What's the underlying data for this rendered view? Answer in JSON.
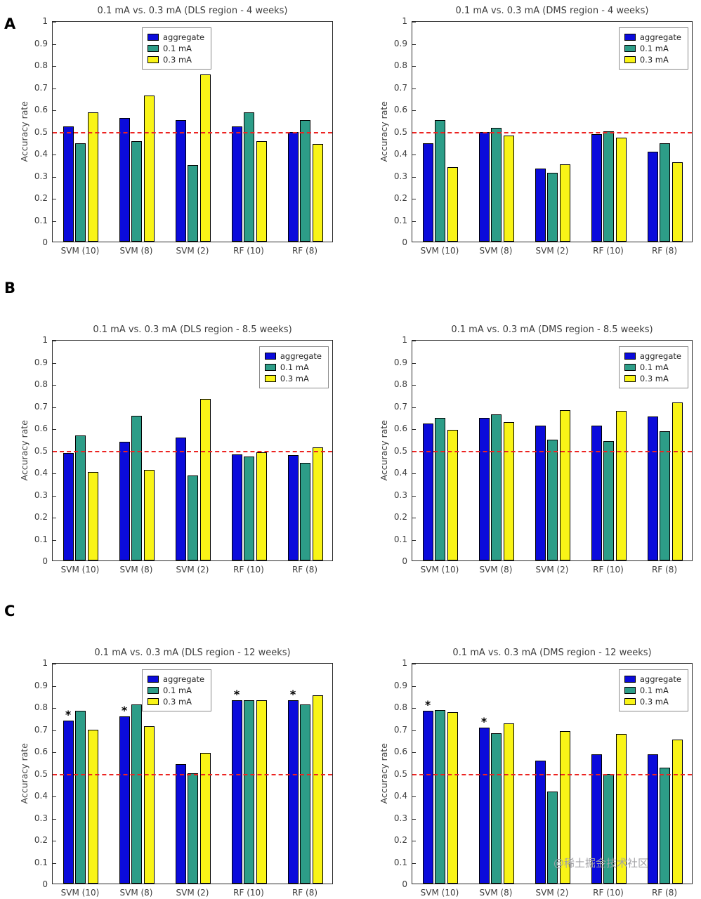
{
  "panel_labels": [
    "A",
    "B",
    "C"
  ],
  "watermark": "@稀土掘金技术社区",
  "colors": {
    "aggregate": "#0b0bdb",
    "current_01mA": "#2d9d88",
    "current_03mA": "#f9f417",
    "bar_edge": "#000000",
    "refline": "#ec2422",
    "axis_text": "#3d3d3d"
  },
  "chart_data": [
    {
      "type": "bar",
      "panel": "A",
      "title": "0.1 mA vs. 0.3 mA (DLS region - 4 weeks)",
      "ylabel": "Accuracy rate",
      "ylim": [
        0,
        1
      ],
      "yticks": [
        "0",
        "0.1",
        "0.2",
        "0.3",
        "0.4",
        "0.5",
        "0.6",
        "0.7",
        "0.8",
        "0.9",
        "1"
      ],
      "categories": [
        "SVM (10)",
        "SVM (8)",
        "SVM (2)",
        "RF (10)",
        "RF (8)"
      ],
      "series": [
        {
          "name": "aggregate",
          "color": "#0b0bdb",
          "values": [
            0.52,
            0.56,
            0.55,
            0.52,
            0.495
          ]
        },
        {
          "name": "0.1 mA",
          "color": "#2d9d88",
          "values": [
            0.445,
            0.455,
            0.345,
            0.585,
            0.55
          ]
        },
        {
          "name": "0.3 mA",
          "color": "#f9f417",
          "values": [
            0.585,
            0.66,
            0.755,
            0.455,
            0.44
          ]
        }
      ],
      "refline": 0.5,
      "legend_position": "center",
      "stars": []
    },
    {
      "type": "bar",
      "panel": "A",
      "title": "0.1 mA vs. 0.3 mA (DMS region - 4 weeks)",
      "ylabel": "Accuracy rate",
      "ylim": [
        0,
        1
      ],
      "yticks": [
        "0",
        "0.1",
        "0.2",
        "0.3",
        "0.4",
        "0.5",
        "0.6",
        "0.7",
        "0.8",
        "0.9",
        "1"
      ],
      "categories": [
        "SVM (10)",
        "SVM (8)",
        "SVM (2)",
        "RF (10)",
        "RF (8)"
      ],
      "series": [
        {
          "name": "aggregate",
          "color": "#0b0bdb",
          "values": [
            0.445,
            0.495,
            0.33,
            0.485,
            0.405
          ]
        },
        {
          "name": "0.1 mA",
          "color": "#2d9d88",
          "values": [
            0.55,
            0.515,
            0.31,
            0.5,
            0.445
          ]
        },
        {
          "name": "0.3 mA",
          "color": "#f9f417",
          "values": [
            0.335,
            0.48,
            0.35,
            0.47,
            0.36
          ]
        }
      ],
      "refline": 0.5,
      "legend_position": "right",
      "stars": []
    },
    {
      "type": "bar",
      "panel": "B",
      "title": "0.1 mA vs. 0.3 mA (DLS region - 8.5 weeks)",
      "ylabel": "Accuracy rate",
      "ylim": [
        0,
        1
      ],
      "yticks": [
        "0",
        "0.1",
        "0.2",
        "0.3",
        "0.4",
        "0.5",
        "0.6",
        "0.7",
        "0.8",
        "0.9",
        "1"
      ],
      "categories": [
        "SVM (10)",
        "SVM (8)",
        "SVM (2)",
        "RF (10)",
        "RF (8)"
      ],
      "series": [
        {
          "name": "aggregate",
          "color": "#0b0bdb",
          "values": [
            0.485,
            0.535,
            0.555,
            0.48,
            0.475
          ]
        },
        {
          "name": "0.1 mA",
          "color": "#2d9d88",
          "values": [
            0.565,
            0.655,
            0.385,
            0.47,
            0.44
          ]
        },
        {
          "name": "0.3 mA",
          "color": "#f9f417",
          "values": [
            0.4,
            0.41,
            0.73,
            0.49,
            0.51
          ]
        }
      ],
      "refline": 0.5,
      "legend_position": "right",
      "stars": []
    },
    {
      "type": "bar",
      "panel": "B",
      "title": "0.1 mA vs. 0.3 mA (DMS region - 8.5 weeks)",
      "ylabel": "Accuracy rate",
      "ylim": [
        0,
        1
      ],
      "yticks": [
        "0",
        "0.1",
        "0.2",
        "0.3",
        "0.4",
        "0.5",
        "0.6",
        "0.7",
        "0.8",
        "0.9",
        "1"
      ],
      "categories": [
        "SVM (10)",
        "SVM (8)",
        "SVM (2)",
        "RF (10)",
        "RF (8)"
      ],
      "series": [
        {
          "name": "aggregate",
          "color": "#0b0bdb",
          "values": [
            0.62,
            0.645,
            0.61,
            0.61,
            0.65
          ]
        },
        {
          "name": "0.1 mA",
          "color": "#2d9d88",
          "values": [
            0.645,
            0.66,
            0.545,
            0.54,
            0.585
          ]
        },
        {
          "name": "0.3 mA",
          "color": "#f9f417",
          "values": [
            0.59,
            0.625,
            0.68,
            0.675,
            0.715
          ]
        }
      ],
      "refline": 0.5,
      "legend_position": "right",
      "stars": []
    },
    {
      "type": "bar",
      "panel": "C",
      "title": "0.1 mA vs. 0.3 mA (DLS region - 12 weeks)",
      "ylabel": "Accuracy rate",
      "ylim": [
        0,
        1
      ],
      "yticks": [
        "0",
        "0.1",
        "0.2",
        "0.3",
        "0.4",
        "0.5",
        "0.6",
        "0.7",
        "0.8",
        "0.9",
        "1"
      ],
      "categories": [
        "SVM (10)",
        "SVM (8)",
        "SVM (2)",
        "RF (10)",
        "RF (8)"
      ],
      "series": [
        {
          "name": "aggregate",
          "color": "#0b0bdb",
          "values": [
            0.735,
            0.755,
            0.54,
            0.83,
            0.83
          ]
        },
        {
          "name": "0.1 mA",
          "color": "#2d9d88",
          "values": [
            0.78,
            0.81,
            0.5,
            0.83,
            0.81
          ]
        },
        {
          "name": "0.3 mA",
          "color": "#f9f417",
          "values": [
            0.695,
            0.71,
            0.59,
            0.83,
            0.85
          ]
        }
      ],
      "refline": 0.5,
      "legend_position": "center",
      "stars": [
        0,
        1,
        3,
        4
      ]
    },
    {
      "type": "bar",
      "panel": "C",
      "title": "0.1 mA vs. 0.3 mA (DMS region - 12 weeks)",
      "ylabel": "Accuracy rate",
      "ylim": [
        0,
        1
      ],
      "yticks": [
        "0",
        "0.1",
        "0.2",
        "0.3",
        "0.4",
        "0.5",
        "0.6",
        "0.7",
        "0.8",
        "0.9",
        "1"
      ],
      "categories": [
        "SVM (10)",
        "SVM (8)",
        "SVM (2)",
        "RF (10)",
        "RF (8)"
      ],
      "series": [
        {
          "name": "aggregate",
          "color": "#0b0bdb",
          "values": [
            0.78,
            0.705,
            0.555,
            0.585,
            0.585
          ]
        },
        {
          "name": "0.1 mA",
          "color": "#2d9d88",
          "values": [
            0.785,
            0.68,
            0.415,
            0.495,
            0.525
          ]
        },
        {
          "name": "0.3 mA",
          "color": "#f9f417",
          "values": [
            0.775,
            0.725,
            0.69,
            0.675,
            0.65
          ]
        }
      ],
      "refline": 0.5,
      "legend_position": "right",
      "stars": [
        0,
        1
      ]
    }
  ]
}
